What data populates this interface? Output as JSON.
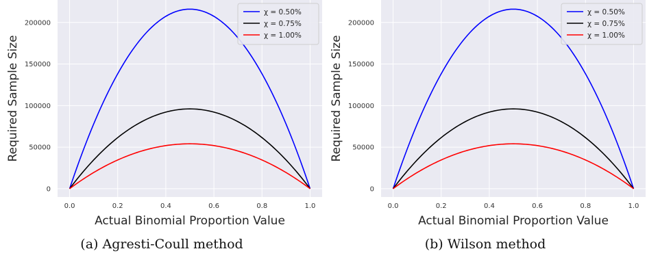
{
  "chart_data": [
    {
      "type": "line",
      "caption": "(a) Agresti-Coull method",
      "xlabel": "Actual Binomial Proportion Value",
      "ylabel": "Required Sample Size",
      "xlim": [
        -0.05,
        1.05
      ],
      "ylim": [
        -10000,
        227000
      ],
      "xticks": [
        "0.0",
        "0.2",
        "0.4",
        "0.6",
        "0.8",
        "1.0"
      ],
      "yticks": [
        "0",
        "50000",
        "100000",
        "150000",
        "200000"
      ],
      "grid": true,
      "legend_position": "top-right",
      "series": [
        {
          "name": "χ = 0.50%",
          "color": "#0000ff",
          "peak": 216000,
          "x": [
            0.0,
            0.1,
            0.2,
            0.3,
            0.4,
            0.5,
            0.6,
            0.7,
            0.8,
            0.9,
            1.0
          ],
          "values": [
            0,
            77760,
            138240,
            181440,
            207360,
            216000,
            207360,
            181440,
            138240,
            77760,
            0
          ]
        },
        {
          "name": "χ = 0.75%",
          "color": "#000000",
          "peak": 96000,
          "x": [
            0.0,
            0.1,
            0.2,
            0.3,
            0.4,
            0.5,
            0.6,
            0.7,
            0.8,
            0.9,
            1.0
          ],
          "values": [
            0,
            34560,
            61440,
            80640,
            92160,
            96000,
            92160,
            80640,
            61440,
            34560,
            0
          ]
        },
        {
          "name": "χ = 1.00%",
          "color": "#ff0000",
          "peak": 54000,
          "x": [
            0.0,
            0.1,
            0.2,
            0.3,
            0.4,
            0.5,
            0.6,
            0.7,
            0.8,
            0.9,
            1.0
          ],
          "values": [
            0,
            19440,
            34560,
            45360,
            51840,
            54000,
            51840,
            45360,
            34560,
            19440,
            0
          ]
        }
      ]
    },
    {
      "type": "line",
      "caption": "(b) Wilson method",
      "xlabel": "Actual Binomial Proportion Value",
      "ylabel": "Required Sample Size",
      "xlim": [
        -0.05,
        1.05
      ],
      "ylim": [
        -10000,
        227000
      ],
      "xticks": [
        "0.0",
        "0.2",
        "0.4",
        "0.6",
        "0.8",
        "1.0"
      ],
      "yticks": [
        "0",
        "50000",
        "100000",
        "150000",
        "200000"
      ],
      "grid": true,
      "legend_position": "top-right",
      "series": [
        {
          "name": "χ = 0.50%",
          "color": "#0000ff",
          "peak": 216000,
          "x": [
            0.0,
            0.1,
            0.2,
            0.3,
            0.4,
            0.5,
            0.6,
            0.7,
            0.8,
            0.9,
            1.0
          ],
          "values": [
            0,
            77760,
            138240,
            181440,
            207360,
            216000,
            207360,
            181440,
            138240,
            77760,
            0
          ]
        },
        {
          "name": "χ = 0.75%",
          "color": "#000000",
          "peak": 96000,
          "x": [
            0.0,
            0.1,
            0.2,
            0.3,
            0.4,
            0.5,
            0.6,
            0.7,
            0.8,
            0.9,
            1.0
          ],
          "values": [
            0,
            34560,
            61440,
            80640,
            92160,
            96000,
            92160,
            80640,
            61440,
            34560,
            0
          ]
        },
        {
          "name": "χ = 1.00%",
          "color": "#ff0000",
          "peak": 54000,
          "x": [
            0.0,
            0.1,
            0.2,
            0.3,
            0.4,
            0.5,
            0.6,
            0.7,
            0.8,
            0.9,
            1.0
          ],
          "values": [
            0,
            19440,
            34560,
            45360,
            51840,
            54000,
            51840,
            45360,
            34560,
            19440,
            0
          ]
        }
      ]
    }
  ]
}
